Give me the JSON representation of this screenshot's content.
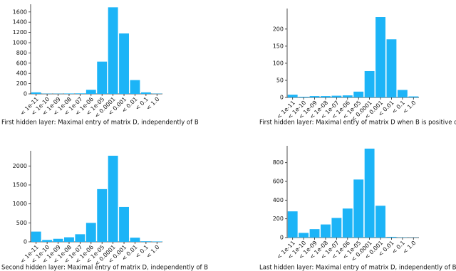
{
  "chart_data": [
    {
      "type": "bar",
      "title": "First hidden layer: Maximal entry of matrix D, independently of B",
      "categories": [
        "< 1e-11",
        "< 1e-10",
        "< 1e-09",
        "< 1e-08",
        "< 1e-07",
        "< 1e-06",
        "< 1e-05",
        "< 0.0001",
        "< 0.001",
        "< 0.01",
        "< 0.1",
        "< 1.0"
      ],
      "values": [
        30,
        5,
        5,
        8,
        10,
        80,
        630,
        1690,
        1180,
        270,
        30,
        5
      ],
      "color": "#1cb4f7",
      "ylim": [
        0,
        1750
      ],
      "yticks": [
        0,
        200,
        400,
        600,
        800,
        1000,
        1200,
        1400,
        1600
      ]
    },
    {
      "type": "bar",
      "title": "First hidden layer: Maximal entry of matrix D when B is positive definite",
      "categories": [
        "< 1e-11",
        "< 1e-10",
        "< 1e-09",
        "< 1e-08",
        "< 1e-07",
        "< 1e-06",
        "< 1e-05",
        "< 0.0001",
        "< 0.001",
        "< 0.01",
        "< 0.1",
        "< 1.0"
      ],
      "values": [
        8,
        2,
        4,
        4,
        5,
        6,
        17,
        77,
        235,
        170,
        22,
        3
      ],
      "color": "#1cb4f7",
      "ylim": [
        0,
        260
      ],
      "yticks": [
        0,
        50,
        100,
        150,
        200
      ]
    },
    {
      "type": "bar",
      "title": "Second hidden layer: Maximal entry of matrix D, independently of B",
      "categories": [
        "< 1e-11",
        "< 1e-10",
        "< 1e-09",
        "< 1e-08",
        "< 1e-07",
        "< 1e-06",
        "< 1e-05",
        "< 0.0001",
        "< 0.001",
        "< 0.01",
        "< 0.1",
        "< 1.0"
      ],
      "values": [
        270,
        50,
        80,
        120,
        200,
        500,
        1390,
        2270,
        920,
        110,
        15,
        10
      ],
      "color": "#1cb4f7",
      "ylim": [
        0,
        2400
      ],
      "yticks": [
        0,
        500,
        1000,
        1500,
        2000
      ]
    },
    {
      "type": "bar",
      "title": "Last hidden layer: Maximal entry of matrix D, independently of B",
      "categories": [
        "< 1e-11",
        "< 1e-10",
        "< 1e-09",
        "< 1e-08",
        "< 1e-07",
        "< 1e-06",
        "< 1e-05",
        "< 0.0001",
        "< 0.001",
        "< 0.01",
        "< 0.1",
        "< 1.0"
      ],
      "values": [
        280,
        50,
        90,
        140,
        210,
        310,
        620,
        950,
        340,
        8,
        3,
        2
      ],
      "color": "#1cb4f7",
      "ylim": [
        0,
        980
      ],
      "yticks": [
        0,
        200,
        400,
        600,
        800
      ]
    }
  ]
}
